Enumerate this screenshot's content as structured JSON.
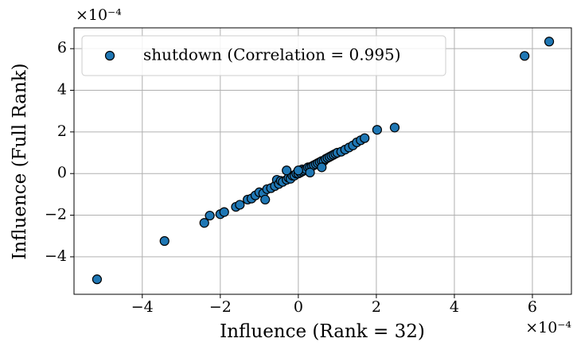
{
  "chart_data": {
    "type": "scatter",
    "xlabel": "Influence (Rank = 32)",
    "ylabel": "Influence (Full Rank)",
    "x_offset_label": "×10⁻⁴",
    "y_offset_label": "×10⁻⁴",
    "xlim": [
      -5.75,
      7.0
    ],
    "ylim": [
      -5.8,
      7.0
    ],
    "xticks": [
      {
        "value": -4,
        "label": "−4"
      },
      {
        "value": -2,
        "label": "−2"
      },
      0,
      2,
      4,
      6
    ],
    "yticks": [
      {
        "value": -4,
        "label": "−4"
      },
      {
        "value": -2,
        "label": "−2"
      },
      0,
      2,
      4,
      6
    ],
    "grid": true,
    "legend": "upper left",
    "series": [
      {
        "name": "shutdown (Correlation = 0.995)",
        "color": "#1f77b4",
        "x": [
          -5.16,
          -3.43,
          5.8,
          6.43,
          2.47,
          2.02,
          -2.41,
          -2.27,
          -2.0,
          -1.9,
          -1.6,
          -1.5,
          -1.3,
          -1.2,
          -1.1,
          -1.0,
          -0.9,
          -0.85,
          -0.8,
          -0.7,
          -0.6,
          -0.55,
          -0.5,
          -0.45,
          -0.4,
          -0.3,
          -0.25,
          -0.2,
          -0.15,
          -0.1,
          -0.05,
          0,
          0.05,
          0.1,
          0.1,
          0.15,
          0.2,
          0.25,
          0.3,
          0.35,
          0.4,
          0.45,
          0.5,
          0.55,
          0.6,
          0.65,
          0.7,
          0.75,
          0.8,
          0.85,
          0.9,
          0.95,
          1.0,
          1.1,
          1.2,
          1.3,
          1.4,
          1.5,
          1.6,
          1.7,
          0.3,
          0.6,
          -0.3,
          0.0
        ],
        "y": [
          -5.08,
          -3.24,
          5.65,
          6.34,
          2.21,
          2.1,
          -2.37,
          -2.02,
          -1.95,
          -1.85,
          -1.6,
          -1.5,
          -1.25,
          -1.2,
          -1.05,
          -0.9,
          -0.95,
          -1.25,
          -0.75,
          -0.7,
          -0.6,
          -0.3,
          -0.5,
          -0.35,
          -0.4,
          -0.3,
          -0.2,
          -0.25,
          -0.1,
          -0.1,
          0.0,
          0.0,
          0.05,
          0.1,
          0.2,
          0.15,
          0.2,
          0.3,
          0.3,
          0.35,
          0.4,
          0.45,
          0.5,
          0.55,
          0.6,
          0.6,
          0.7,
          0.75,
          0.8,
          0.85,
          0.9,
          0.95,
          1.0,
          1.05,
          1.15,
          1.25,
          1.35,
          1.5,
          1.6,
          1.7,
          0.05,
          0.3,
          0.15,
          0.15
        ]
      }
    ]
  }
}
